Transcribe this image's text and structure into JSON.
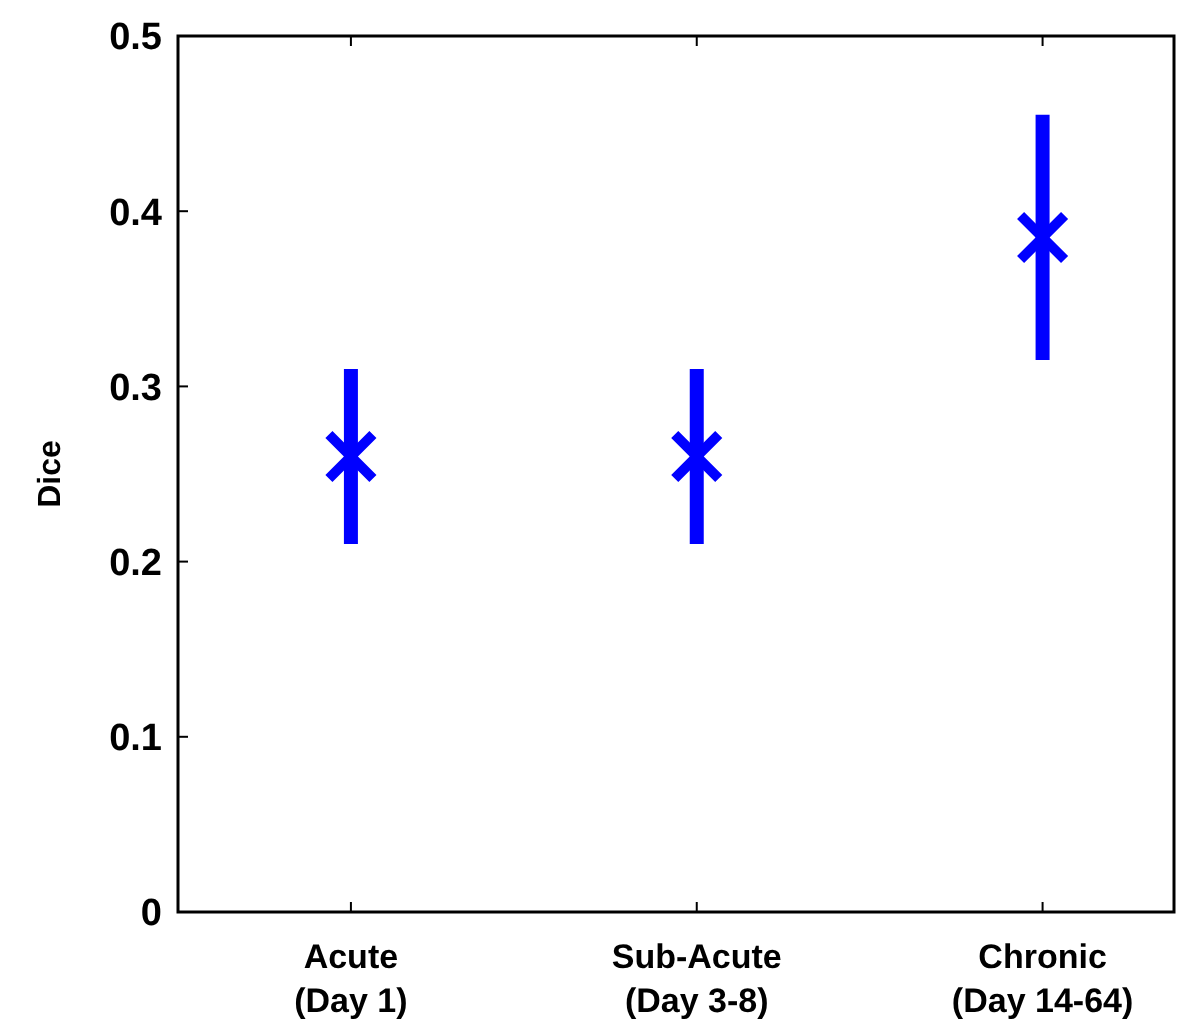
{
  "chart_data": {
    "type": "scatter",
    "ylabel": "Dice",
    "categories": [
      "Acute\n(Day 1)",
      "Sub-Acute\n(Day 3-8)",
      "Chronic\n(Day 14-64)"
    ],
    "values": [
      0.26,
      0.26,
      0.385
    ],
    "errors": [
      0.05,
      0.05,
      0.07
    ],
    "color": "#0000ff",
    "marker": "cross",
    "ylim": [
      0,
      0.5
    ],
    "yticks": [
      0,
      0.1,
      0.2,
      0.3,
      0.4,
      0.5
    ],
    "grid": false
  }
}
